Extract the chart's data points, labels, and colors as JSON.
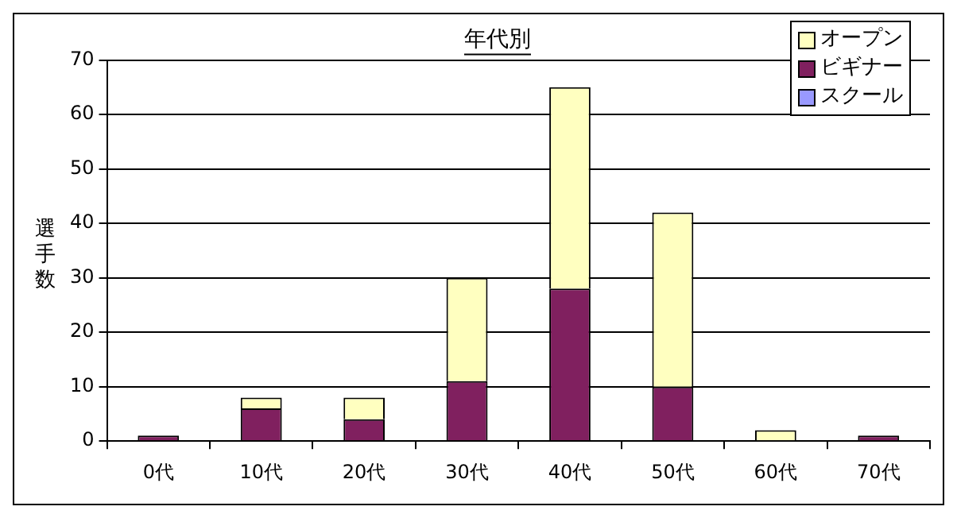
{
  "chart_data": {
    "type": "bar",
    "title": "年代別",
    "ylabel": "選手数",
    "categories": [
      "0代",
      "10代",
      "20代",
      "30代",
      "40代",
      "50代",
      "60代",
      "70代"
    ],
    "series": [
      {
        "name": "スクール",
        "color": "#9999ff",
        "values": [
          0,
          0,
          0,
          0,
          0,
          0,
          0,
          0
        ]
      },
      {
        "name": "ビギナー",
        "color": "#80205f",
        "values": [
          1,
          6,
          4,
          11,
          28,
          10,
          0,
          1
        ]
      },
      {
        "name": "オープン",
        "color": "#ffffc0",
        "values": [
          0,
          2,
          4,
          19,
          37,
          32,
          2,
          0
        ]
      }
    ],
    "stacked": true,
    "ylim": [
      0,
      70
    ],
    "yticks": [
      0,
      10,
      20,
      30,
      40,
      50,
      60,
      70
    ],
    "grid": "y",
    "legend": "top right"
  }
}
